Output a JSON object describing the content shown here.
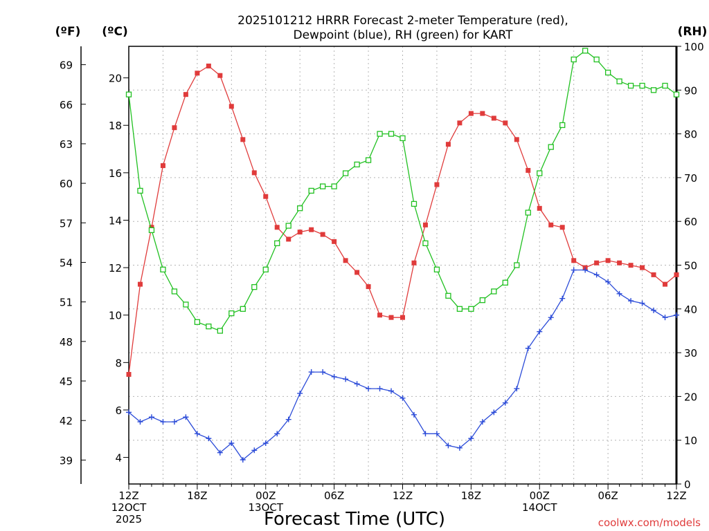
{
  "chart_data": {
    "type": "line",
    "title_line1": "2025101212 HRRR Forecast 2-meter Temperature (red),",
    "title_line2": "Dewpoint (blue), RH (green) for KART",
    "xlabel": "Forecast Time (UTC)",
    "credit": "coolwx.com/models",
    "units": {
      "left_outer": "(ºF)",
      "left_inner": "(ºC)",
      "right": "(RH)"
    },
    "x_ticks": [
      {
        "hour": 0,
        "lines": [
          "12Z",
          "12OCT",
          "2025"
        ]
      },
      {
        "hour": 6,
        "lines": [
          "18Z"
        ]
      },
      {
        "hour": 12,
        "lines": [
          "00Z",
          "13OCT"
        ]
      },
      {
        "hour": 18,
        "lines": [
          "06Z"
        ]
      },
      {
        "hour": 24,
        "lines": [
          "12Z"
        ]
      },
      {
        "hour": 30,
        "lines": [
          "18Z"
        ]
      },
      {
        "hour": 36,
        "lines": [
          "00Z",
          "14OCT"
        ]
      },
      {
        "hour": 42,
        "lines": [
          "06Z"
        ]
      },
      {
        "hour": 48,
        "lines": [
          "12Z"
        ]
      }
    ],
    "xlim": [
      0,
      48
    ],
    "ylim_c": [
      2.88,
      21.33
    ],
    "ylim_rh": [
      0,
      100
    ],
    "yticks_c": [
      4,
      6,
      8,
      10,
      12,
      14,
      16,
      18,
      20
    ],
    "yticks_f": [
      39,
      42,
      45,
      48,
      51,
      54,
      57,
      60,
      63,
      66,
      69
    ],
    "yticks_rh": [
      0,
      10,
      20,
      30,
      40,
      50,
      60,
      70,
      80,
      90,
      100
    ],
    "grid": true,
    "colors": {
      "temperature": "#e03b3b",
      "dewpoint": "#2b4bd8",
      "rh": "#20c020"
    },
    "series": [
      {
        "key": "temperature",
        "unit": "C",
        "marker": "filled-square",
        "values": [
          7.5,
          11.3,
          13.7,
          16.3,
          17.9,
          19.3,
          20.2,
          20.5,
          20.1,
          18.8,
          17.4,
          16.0,
          15.0,
          13.7,
          13.2,
          13.5,
          13.6,
          13.4,
          13.1,
          12.3,
          11.8,
          11.2,
          10.0,
          9.9,
          9.9,
          12.2,
          13.8,
          15.5,
          17.2,
          18.1,
          18.5,
          18.5,
          18.3,
          18.1,
          17.4,
          16.1,
          14.5,
          13.8,
          13.7,
          12.3,
          12.0,
          12.2,
          12.3,
          12.2,
          12.1,
          12.0,
          11.7,
          11.3,
          11.7
        ]
      },
      {
        "key": "dewpoint",
        "unit": "C",
        "marker": "plus",
        "values": [
          5.9,
          5.5,
          5.7,
          5.5,
          5.5,
          5.7,
          5.0,
          4.8,
          4.2,
          4.6,
          3.9,
          4.3,
          4.6,
          5.0,
          5.6,
          6.7,
          7.6,
          7.6,
          7.4,
          7.3,
          7.1,
          6.9,
          6.9,
          6.8,
          6.5,
          5.8,
          5.0,
          5.0,
          4.5,
          4.4,
          4.8,
          5.5,
          5.9,
          6.3,
          6.9,
          8.6,
          9.3,
          9.9,
          10.7,
          11.9,
          11.9,
          11.7,
          11.4,
          10.9,
          10.6,
          10.5,
          10.2,
          9.9,
          10.0
        ]
      },
      {
        "key": "rh",
        "unit": "RH",
        "marker": "open-square",
        "values": [
          89,
          67,
          58,
          49,
          44,
          41,
          37,
          36,
          35,
          39,
          40,
          45,
          49,
          55,
          59,
          63,
          67,
          68,
          68,
          71,
          73,
          74,
          80,
          80,
          79,
          64,
          55,
          49,
          43,
          40,
          40,
          42,
          44,
          46,
          50,
          62,
          71,
          77,
          82,
          97,
          99,
          97,
          94,
          92,
          91,
          91,
          90,
          91,
          89
        ]
      }
    ]
  }
}
